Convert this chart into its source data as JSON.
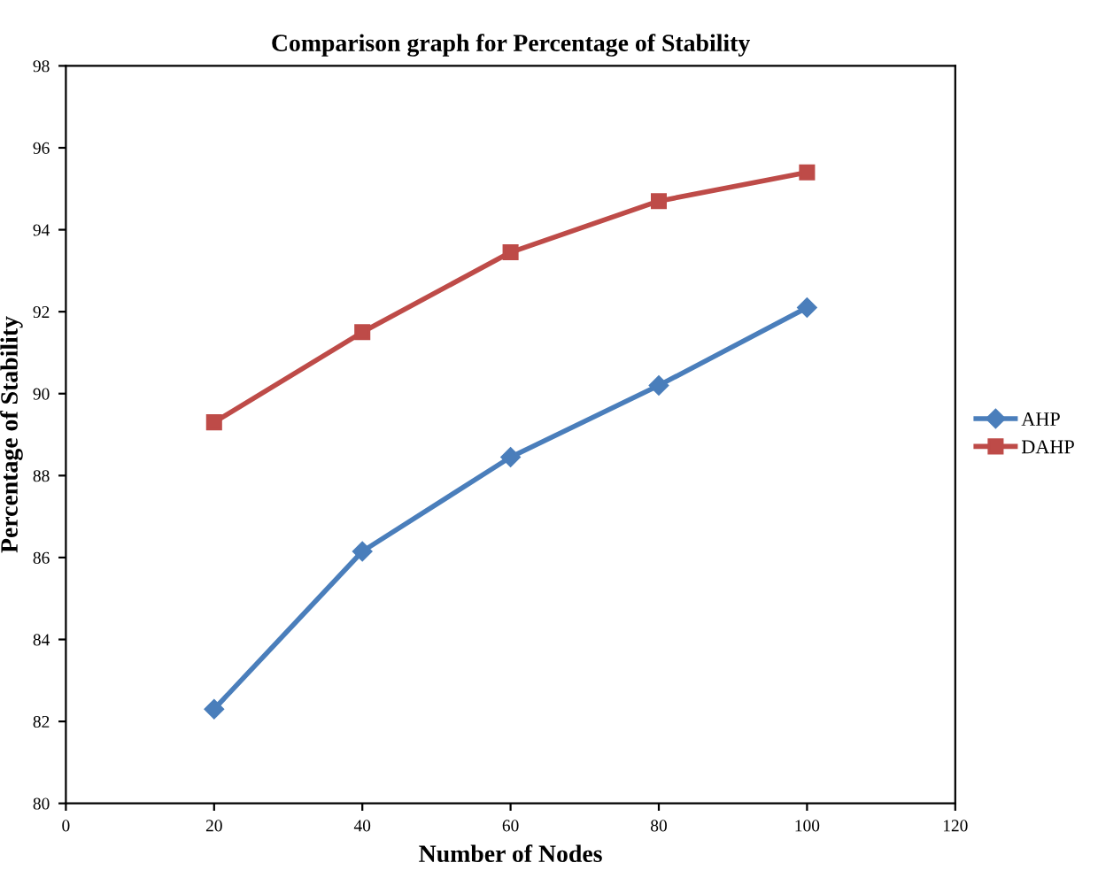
{
  "chart_data": {
    "type": "line",
    "title": "Comparison graph for Percentage of Stability",
    "xlabel": "Number of Nodes",
    "ylabel": "Percentage of Stability",
    "x": [
      20,
      40,
      60,
      80,
      100
    ],
    "series": [
      {
        "name": "AHP",
        "color": "#4a7ebb",
        "marker": "diamond",
        "values": [
          82.3,
          86.15,
          88.45,
          90.2,
          92.1
        ]
      },
      {
        "name": "DAHP",
        "color": "#be4b48",
        "marker": "square",
        "values": [
          89.3,
          91.5,
          93.45,
          94.7,
          95.4
        ]
      }
    ],
    "xlim": [
      0,
      120
    ],
    "xticks": [
      0,
      20,
      40,
      60,
      80,
      100,
      120
    ],
    "ylim": [
      80,
      98
    ],
    "yticks": [
      80,
      82,
      84,
      86,
      88,
      90,
      92,
      94,
      96,
      98
    ],
    "grid": false,
    "legend": "right",
    "line_style": "solid"
  }
}
